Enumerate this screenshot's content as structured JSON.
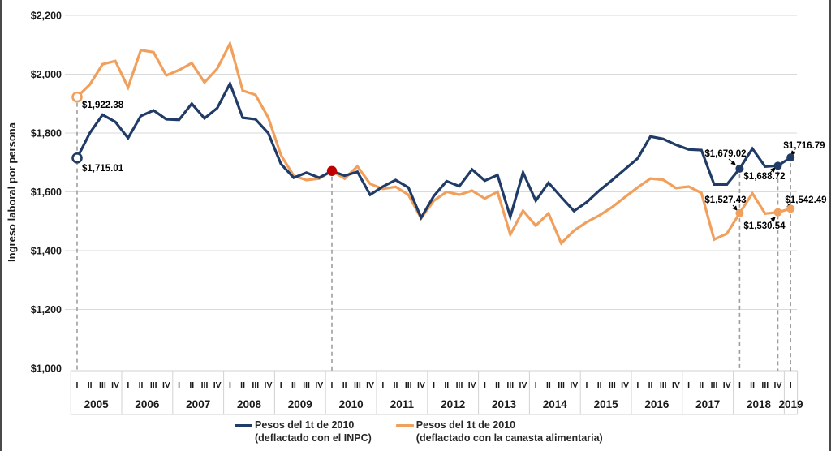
{
  "y_axis": {
    "title": "Ingreso laboral por persona",
    "ticks": [
      {
        "value": 2200,
        "label": "$2,200"
      },
      {
        "value": 2000,
        "label": "$2,000"
      },
      {
        "value": 1800,
        "label": "$1,800"
      },
      {
        "value": 1600,
        "label": "$1,600"
      },
      {
        "value": 1400,
        "label": "$1,400"
      },
      {
        "value": 1200,
        "label": "$1,200"
      },
      {
        "value": 1000,
        "label": "$1,000"
      }
    ]
  },
  "x_axis": {
    "years": [
      "2005",
      "2006",
      "2007",
      "2008",
      "2009",
      "2010",
      "2011",
      "2012",
      "2013",
      "2014",
      "2015",
      "2016",
      "2017",
      "2018"
    ],
    "quarter_labels": [
      "I",
      "II",
      "III",
      "IV"
    ],
    "final_year": "2019",
    "final_year_quarters": [
      "I"
    ]
  },
  "chart_data": {
    "type": "line",
    "x_unit": "quarter",
    "x_start": "2005-Q1",
    "x_end": "2019-Q1",
    "ylim": [
      1000,
      2200
    ],
    "grid": "horizontal",
    "legend_position": "bottom",
    "series": [
      {
        "name": "Pesos del 1t de 2010 (deflactado con el INPC)",
        "color": "#1f3b66",
        "values": [
          1715.01,
          1800,
          1862,
          1838,
          1783,
          1858,
          1877,
          1847,
          1845,
          1900,
          1850,
          1885,
          1968,
          1852,
          1847,
          1800,
          1695,
          1648,
          1665,
          1648,
          1671,
          1655,
          1668,
          1590,
          1618,
          1640,
          1615,
          1512,
          1586,
          1636,
          1619,
          1676,
          1638,
          1657,
          1515,
          1666,
          1570,
          1631,
          1582,
          1535,
          1565,
          1605,
          1640,
          1677,
          1714,
          1788,
          1780,
          1760,
          1744,
          1742,
          1625,
          1625,
          1679.02,
          1747,
          1686,
          1688.72,
          1716.79
        ]
      },
      {
        "name": "Pesos del 1t de 2010 (deflactado con la canasta alimentaria)",
        "color": "#f0a05c",
        "values": [
          1922.38,
          1965,
          2034,
          2045,
          1955,
          2082,
          2075,
          1996,
          2014,
          2038,
          1972,
          2019,
          2104,
          1944,
          1930,
          1853,
          1725,
          1655,
          1640,
          1645,
          1671,
          1645,
          1687,
          1627,
          1610,
          1617,
          1590,
          1510,
          1570,
          1600,
          1590,
          1604,
          1577,
          1600,
          1455,
          1536,
          1485,
          1527,
          1425,
          1468,
          1497,
          1520,
          1548,
          1582,
          1615,
          1645,
          1641,
          1613,
          1618,
          1596,
          1438,
          1458,
          1527.43,
          1595,
          1526,
          1530.54,
          1542.49
        ]
      }
    ],
    "base_period_marker": {
      "quarter_index": 20,
      "x": "2010-Q1",
      "approx_value": 1671,
      "color": "#c00000"
    },
    "highlight_points": [
      {
        "series_index": 0,
        "quarter_index": 0,
        "x": "2005-Q1",
        "value": 1715.01,
        "label": "$1,715.01",
        "marker": "open-circle"
      },
      {
        "series_index": 1,
        "quarter_index": 0,
        "x": "2005-Q1",
        "value": 1922.38,
        "label": "$1,922.38",
        "marker": "open-circle"
      },
      {
        "series_index": 0,
        "quarter_index": 52,
        "x": "2018-Q1",
        "value": 1679.02,
        "label": "$1,679.02",
        "marker": "dot"
      },
      {
        "series_index": 0,
        "quarter_index": 55,
        "x": "2018-Q4",
        "value": 1688.72,
        "label": "$1,688.72",
        "marker": "dot"
      },
      {
        "series_index": 0,
        "quarter_index": 56,
        "x": "2019-Q1",
        "value": 1716.79,
        "label": "$1,716.79",
        "marker": "dot"
      },
      {
        "series_index": 1,
        "quarter_index": 52,
        "x": "2018-Q1",
        "value": 1527.43,
        "label": "$1,527.43",
        "marker": "dot"
      },
      {
        "series_index": 1,
        "quarter_index": 55,
        "x": "2018-Q4",
        "value": 1530.54,
        "label": "$1,530.54",
        "marker": "dot"
      },
      {
        "series_index": 1,
        "quarter_index": 56,
        "x": "2019-Q1",
        "value": 1542.49,
        "label": "$1,542.49",
        "marker": "dot"
      }
    ],
    "dashed_guide_quarters": [
      0,
      20,
      52,
      55,
      56
    ]
  },
  "legend": {
    "items": [
      {
        "line1": "Pesos del 1t de 2010",
        "line2": "(deflactado con el INPC)",
        "color": "#1f3b66"
      },
      {
        "line1": "Pesos del 1t de 2010",
        "line2": "(deflactado con la canasta alimentaria)",
        "color": "#f0a05c"
      }
    ]
  },
  "colors": {
    "navy": "#1f3b66",
    "orange": "#f0a05c",
    "red_dot": "#c00000",
    "gridline": "#dadada",
    "band_border": "#d2d2d2",
    "dashed_guide": "#9e9e9e",
    "text": "#1a1a1a",
    "window_edge": "#4a4a4a"
  }
}
